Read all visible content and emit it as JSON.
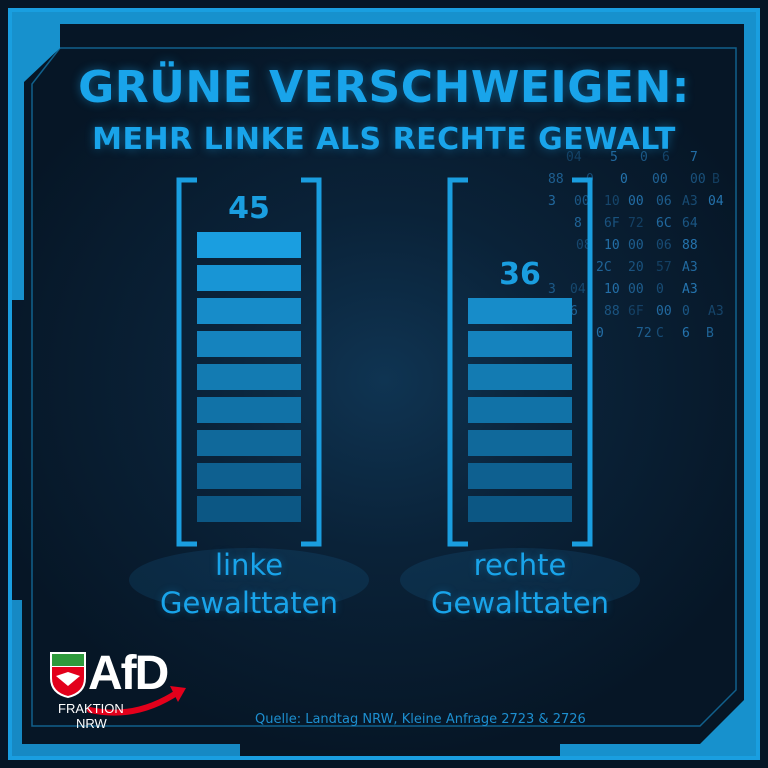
{
  "title_line1": "GRÜNE VERSCHWEIGEN:",
  "title_line2": "MEHR LINKE ALS RECHTE GEWALT",
  "chart_data": {
    "type": "bar",
    "categories": [
      "linke Gewalttaten",
      "rechte Gewalttaten"
    ],
    "category_lines": [
      [
        "linke",
        "Gewalttaten"
      ],
      [
        "rechte",
        "Gewalttaten"
      ]
    ],
    "values": [
      45,
      36
    ],
    "segments_filled": [
      9,
      7
    ],
    "segments_total": 9,
    "bar_color": "#1a9ee0",
    "bar_color_dark": "#0c5784",
    "ylim": [
      0,
      45
    ]
  },
  "decor_hex": [
    "04",
    "5",
    "0",
    "6",
    "7",
    "88",
    "0",
    "0",
    "00",
    "00",
    "B",
    "3",
    "00",
    "10",
    "00",
    "06",
    "A3",
    "04",
    "8",
    "6F",
    "72",
    "6C",
    "64",
    "08",
    "10",
    "00",
    "06",
    "88",
    "2C",
    "20",
    "57",
    "A3",
    "3",
    "04",
    "10",
    "00",
    "0",
    "A3",
    "6",
    "88",
    "6F",
    "00",
    "0",
    "A3",
    "0",
    "72",
    "C",
    "6",
    "B"
  ],
  "logo": {
    "text": "AfD",
    "subtitle1": "FRAKTION",
    "subtitle2": "NRW"
  },
  "source": "Quelle: Landtag NRW, Kleine Anfrage 2723 & 2726",
  "colors": {
    "background": "#061626",
    "accent": "#19a4ea",
    "frame": "#1a9ee0",
    "logo_red": "#e3001b"
  }
}
